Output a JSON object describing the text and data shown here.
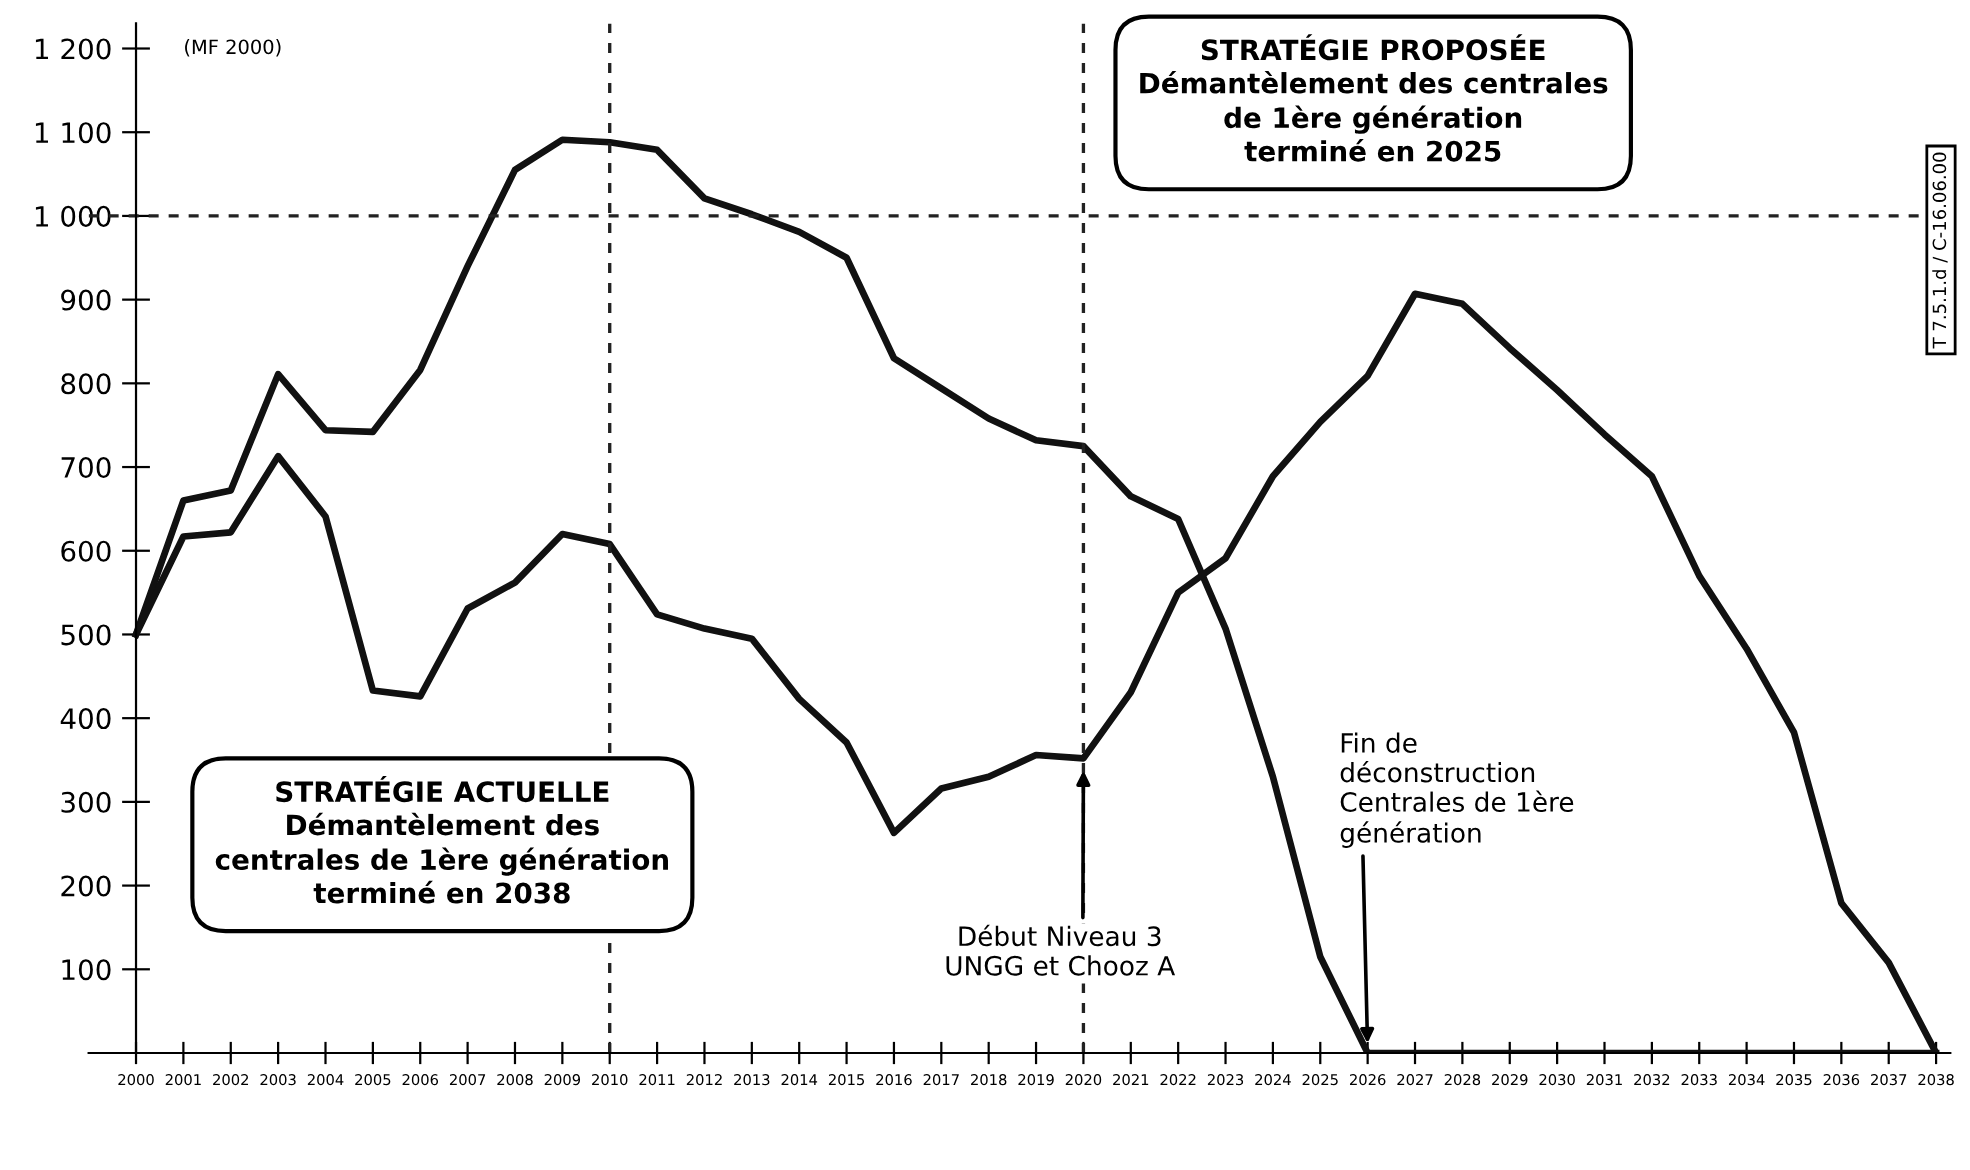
{
  "chart_data": {
    "type": "line",
    "ylabel": "(MF 2000)",
    "x": [
      2000,
      2001,
      2002,
      2003,
      2004,
      2005,
      2006,
      2007,
      2008,
      2009,
      2010,
      2011,
      2012,
      2013,
      2014,
      2015,
      2016,
      2017,
      2018,
      2019,
      2020,
      2021,
      2022,
      2023,
      2024,
      2025,
      2026,
      2027,
      2028,
      2029,
      2030,
      2031,
      2032,
      2033,
      2034,
      2035,
      2036,
      2037,
      2038
    ],
    "series": [
      {
        "color": "#111111",
        "values": [
          500,
          660,
          672,
          811,
          744,
          742,
          816,
          940,
          1055,
          1091,
          1088,
          1079,
          1021,
          1002,
          981,
          950,
          830,
          794,
          758,
          732,
          725,
          665,
          638,
          507,
          330,
          115,
          0,
          0,
          0,
          0,
          0,
          0,
          0,
          0,
          0,
          0,
          0,
          0,
          0
        ]
      },
      {
        "color": "#111111",
        "values": [
          500,
          617,
          622,
          713,
          641,
          433,
          426,
          531,
          562,
          620,
          608,
          524,
          507,
          495,
          423,
          371,
          263,
          316,
          330,
          356,
          352,
          431,
          550,
          591,
          689,
          754,
          809,
          907,
          895,
          842,
          792,
          739,
          689,
          570,
          483,
          383,
          179,
          108,
          0
        ]
      }
    ],
    "xlim": [
      1999,
      2038.3
    ],
    "ylim": [
      0,
      1230
    ],
    "xticks": [
      2000,
      2001,
      2002,
      2003,
      2004,
      2005,
      2006,
      2007,
      2008,
      2009,
      2010,
      2011,
      2012,
      2013,
      2014,
      2015,
      2016,
      2017,
      2018,
      2019,
      2020,
      2021,
      2022,
      2023,
      2024,
      2025,
      2026,
      2027,
      2028,
      2029,
      2030,
      2031,
      2032,
      2033,
      2034,
      2035,
      2036,
      2037,
      2038
    ],
    "yticks": [
      100,
      200,
      300,
      400,
      500,
      600,
      700,
      800,
      900,
      {
        "value": 1000,
        "label": "1 000"
      },
      {
        "value": 1100,
        "label": "1 100"
      },
      {
        "value": 1200,
        "label": "1 200"
      }
    ],
    "ref_lines": [
      {
        "axis": "x",
        "value": 2010,
        "line_style": "dashed"
      },
      {
        "axis": "x",
        "value": 2020,
        "line_style": "dashed"
      },
      {
        "axis": "y",
        "value": 1000,
        "line_style": "dashed"
      }
    ],
    "line_style": "solid",
    "marker": "none",
    "grid": false,
    "annotations": [
      "STRATÉGIE PROPOSÉE\nDémantèlement des centrales\nde 1ère génération\nterminé en 2025",
      "STRATÉGIE ACTUELLE\nDémantèlement des\ncentrales de 1ère génération\nterminé en 2038",
      {
        "text": "Début Niveau 3\nUNGG et Chooz A",
        "x": 2020,
        "y": 352
      },
      {
        "text": "Fin de\ndéconstruction\nCentrales de 1ère\ngénération",
        "x": 2026,
        "y": 0
      },
      "T 7.5.1.d / C-16.06.00"
    ]
  }
}
